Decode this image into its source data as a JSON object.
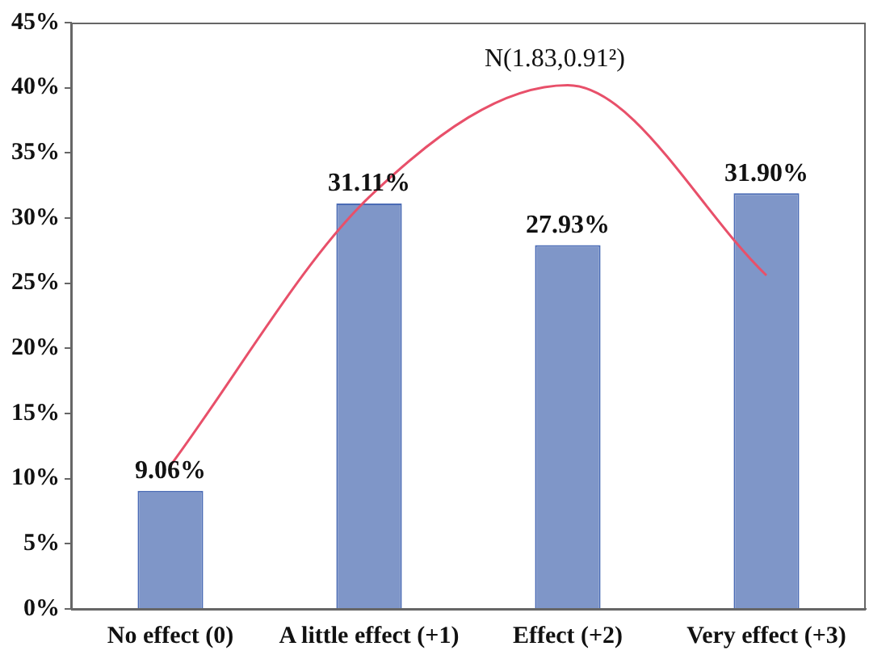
{
  "chart_data": {
    "type": "bar",
    "categories": [
      "No effect (0)",
      "A little effect (+1)",
      "Effect (+2)",
      "Very effect (+3)"
    ],
    "series": [
      {
        "color": "#7f96c8",
        "values": [
          9.06,
          31.11,
          27.93,
          31.9
        ],
        "value_labels": [
          "9.06%",
          "31.11%",
          "27.93%",
          "31.90%"
        ]
      },
      {
        "type": "line",
        "color": "#e8506a",
        "values": [
          11.0,
          31.6,
          40.2,
          25.6
        ]
      }
    ],
    "annotations": [
      "N(1.83,0.91²)"
    ],
    "ylim": [
      0,
      45
    ],
    "yticks": [
      {
        "value": 0,
        "label": "0%"
      },
      {
        "value": 5,
        "label": "5%"
      },
      {
        "value": 10,
        "label": "10%"
      },
      {
        "value": 15,
        "label": "15%"
      },
      {
        "value": 20,
        "label": "20%"
      },
      {
        "value": 25,
        "label": "25%"
      },
      {
        "value": 30,
        "label": "30%"
      },
      {
        "value": 35,
        "label": "35%"
      },
      {
        "value": 40,
        "label": "40%"
      },
      {
        "value": 45,
        "label": "45%"
      }
    ],
    "grid": false,
    "legend": false,
    "marker": "none",
    "line_style": "solid"
  }
}
